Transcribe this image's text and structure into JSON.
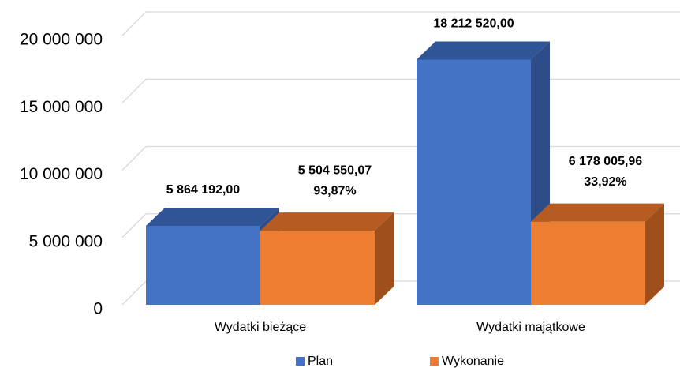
{
  "chart_data": {
    "type": "bar3d",
    "categories": [
      "Wydatki bieżące",
      "Wydatki majątkowe"
    ],
    "series": [
      {
        "name": "Plan",
        "color": "#4472c4",
        "top_color": "#2f5597",
        "side_color": "#2e4d88",
        "values": [
          5864192.0,
          18212520.0
        ],
        "value_labels": [
          "5 864 192,00",
          "18 212 520,00"
        ]
      },
      {
        "name": "Wykonanie",
        "color": "#ed7d31",
        "top_color": "#b65c22",
        "side_color": "#9e4f1c",
        "values": [
          5504550.07,
          6178005.96
        ],
        "value_labels": [
          "5 504 550,07",
          "6 178 005,96"
        ],
        "percent_labels": [
          "93,87%",
          "33,92%"
        ]
      }
    ],
    "ylim": [
      0,
      20000000
    ],
    "yticks": [
      0,
      {
        "value": 5000000,
        "label": "5 000 000"
      },
      {
        "value": 10000000,
        "label": "10 000 000"
      },
      {
        "value": 15000000,
        "label": "15 000 000"
      },
      {
        "value": 20000000,
        "label": "20 000 000"
      }
    ],
    "grid": true,
    "legend": "bottom"
  }
}
